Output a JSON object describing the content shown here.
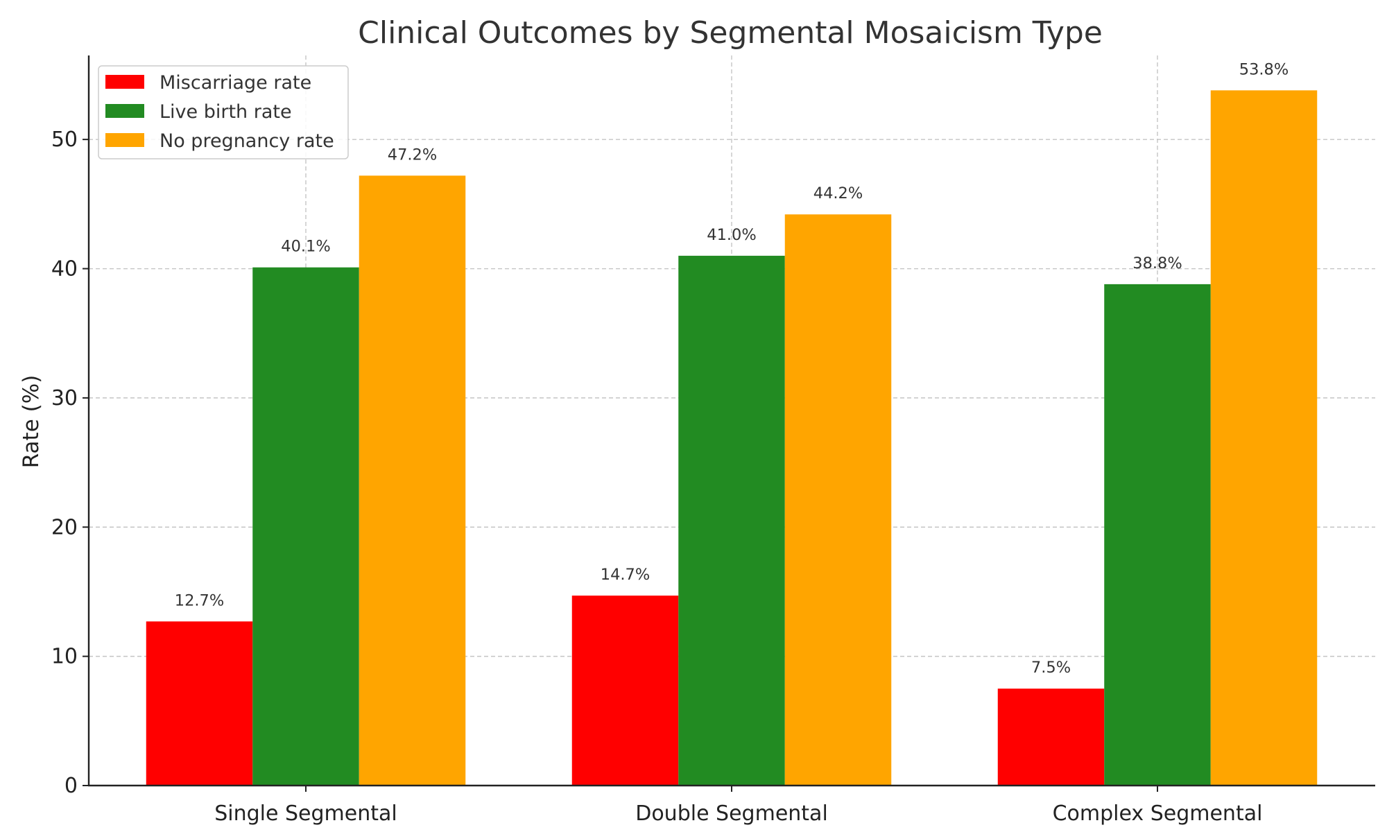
{
  "chart_data": {
    "type": "bar",
    "title": "Clinical Outcomes by Segmental Mosaicism Type",
    "xlabel": "",
    "ylabel": "Rate (%)",
    "ylim": [
      0,
      56.5
    ],
    "yticks": [
      0,
      10,
      20,
      30,
      40,
      50
    ],
    "categories": [
      "Single Segmental",
      "Double Segmental",
      "Complex Segmental"
    ],
    "series": [
      {
        "name": "Miscarriage rate",
        "color": "#ff0000",
        "values": [
          12.7,
          14.7,
          7.5
        ],
        "labels": [
          "12.7%",
          "14.7%",
          "7.5%"
        ]
      },
      {
        "name": "Live birth rate",
        "color": "#228b22",
        "values": [
          40.1,
          41.0,
          38.8
        ],
        "labels": [
          "40.1%",
          "41.0%",
          "38.8%"
        ]
      },
      {
        "name": "No pregnancy rate",
        "color": "#ffa500",
        "values": [
          47.2,
          44.2,
          53.8
        ],
        "labels": [
          "47.2%",
          "44.2%",
          "53.8%"
        ]
      }
    ],
    "grid": true,
    "legend_position": "top-left"
  }
}
